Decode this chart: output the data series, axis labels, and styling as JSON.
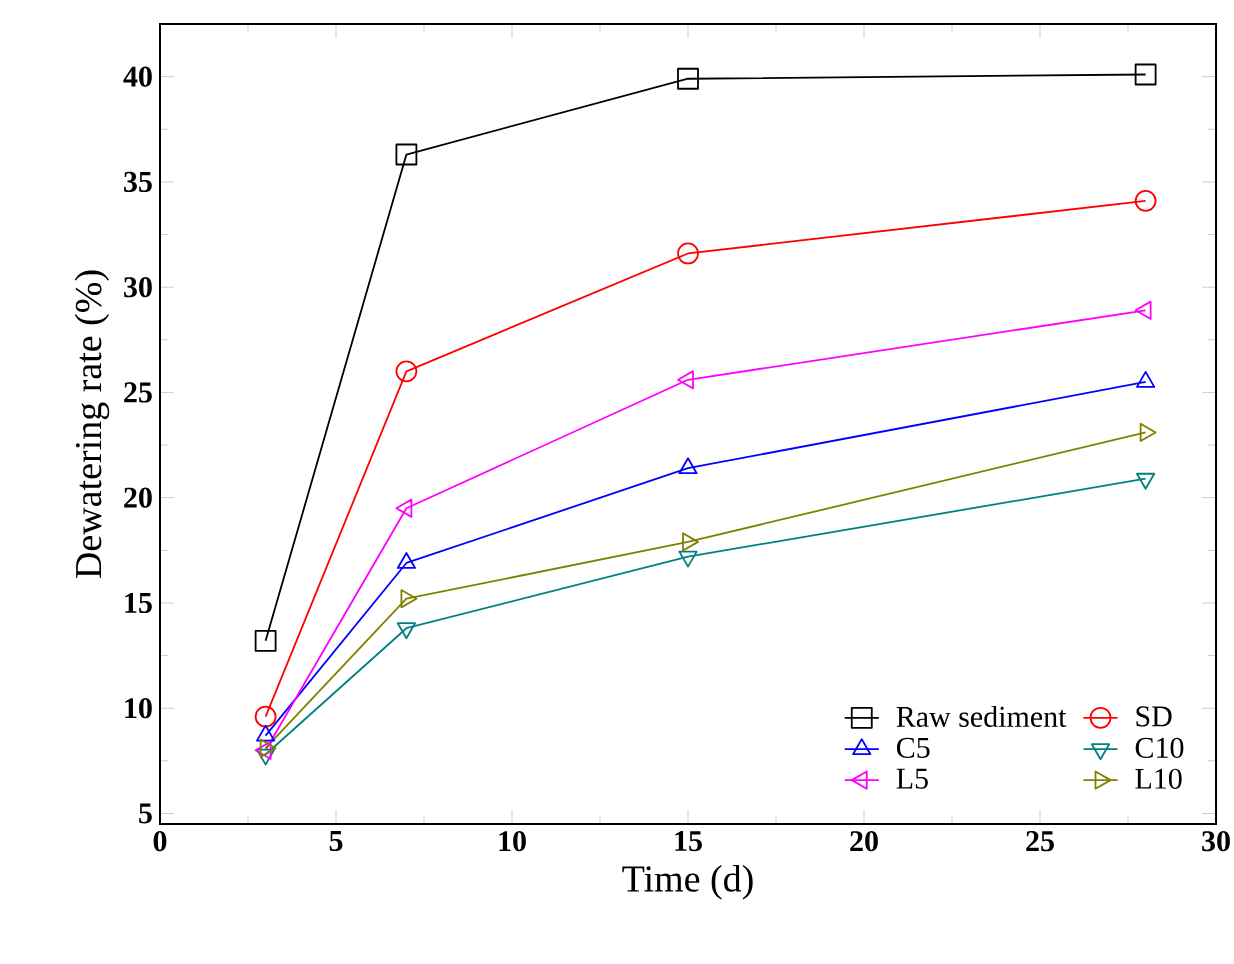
{
  "chart_data": {
    "type": "line",
    "xlabel": "Time (d)",
    "ylabel": "Dewatering rate (%)",
    "xlim": [
      0,
      30
    ],
    "xticks": [
      0,
      5,
      10,
      15,
      20,
      25,
      30
    ],
    "ylim": [
      4.5,
      42.5
    ],
    "yticks": [
      5,
      10,
      15,
      20,
      25,
      30,
      35,
      40
    ],
    "grid": false,
    "legend": "bottom right",
    "x": [
      3,
      7,
      15,
      28
    ],
    "series": [
      {
        "name": "Raw sediment",
        "color": "#000000",
        "marker": "square",
        "values": [
          13.2,
          36.3,
          39.9,
          40.1
        ]
      },
      {
        "name": "SD",
        "color": "#ff0000",
        "marker": "circle",
        "values": [
          9.6,
          26.0,
          31.6,
          34.1
        ]
      },
      {
        "name": "C5",
        "color": "#0000ff",
        "marker": "triangle",
        "values": [
          8.7,
          16.9,
          21.4,
          25.5
        ]
      },
      {
        "name": "C10",
        "color": "#008080",
        "marker": "triangle-down",
        "values": [
          7.8,
          13.8,
          17.2,
          20.9
        ]
      },
      {
        "name": "L5",
        "color": "#ff00ff",
        "marker": "triangle-left",
        "values": [
          8.0,
          19.5,
          25.6,
          28.9
        ]
      },
      {
        "name": "L10",
        "color": "#808000",
        "marker": "triangle-right",
        "values": [
          8.1,
          15.2,
          17.9,
          23.1
        ]
      }
    ]
  }
}
